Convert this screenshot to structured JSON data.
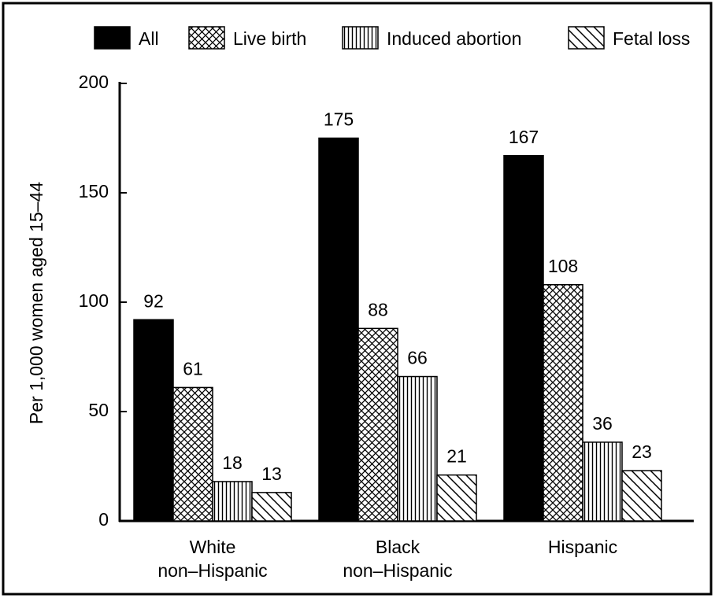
{
  "chart_data": {
    "type": "bar",
    "ylabel": "Per 1,000 women aged 15–44",
    "categories": [
      "White\nnon–Hispanic",
      "Black\nnon–Hispanic",
      "Hispanic"
    ],
    "series": [
      {
        "name": "All",
        "color": "#000000",
        "pattern": "solid",
        "values": [
          92,
          175,
          167
        ]
      },
      {
        "name": "Live birth",
        "color": "#000000",
        "pattern": "crosshatch",
        "values": [
          61,
          88,
          108
        ]
      },
      {
        "name": "Induced abortion",
        "color": "#000000",
        "pattern": "vertical",
        "values": [
          18,
          66,
          36
        ]
      },
      {
        "name": "Fetal loss",
        "color": "#000000",
        "pattern": "diagonal",
        "values": [
          13,
          21,
          23
        ]
      }
    ],
    "ylim": [
      0,
      200
    ],
    "yticks": [
      0,
      50,
      100,
      150,
      200
    ],
    "legend": "top"
  }
}
